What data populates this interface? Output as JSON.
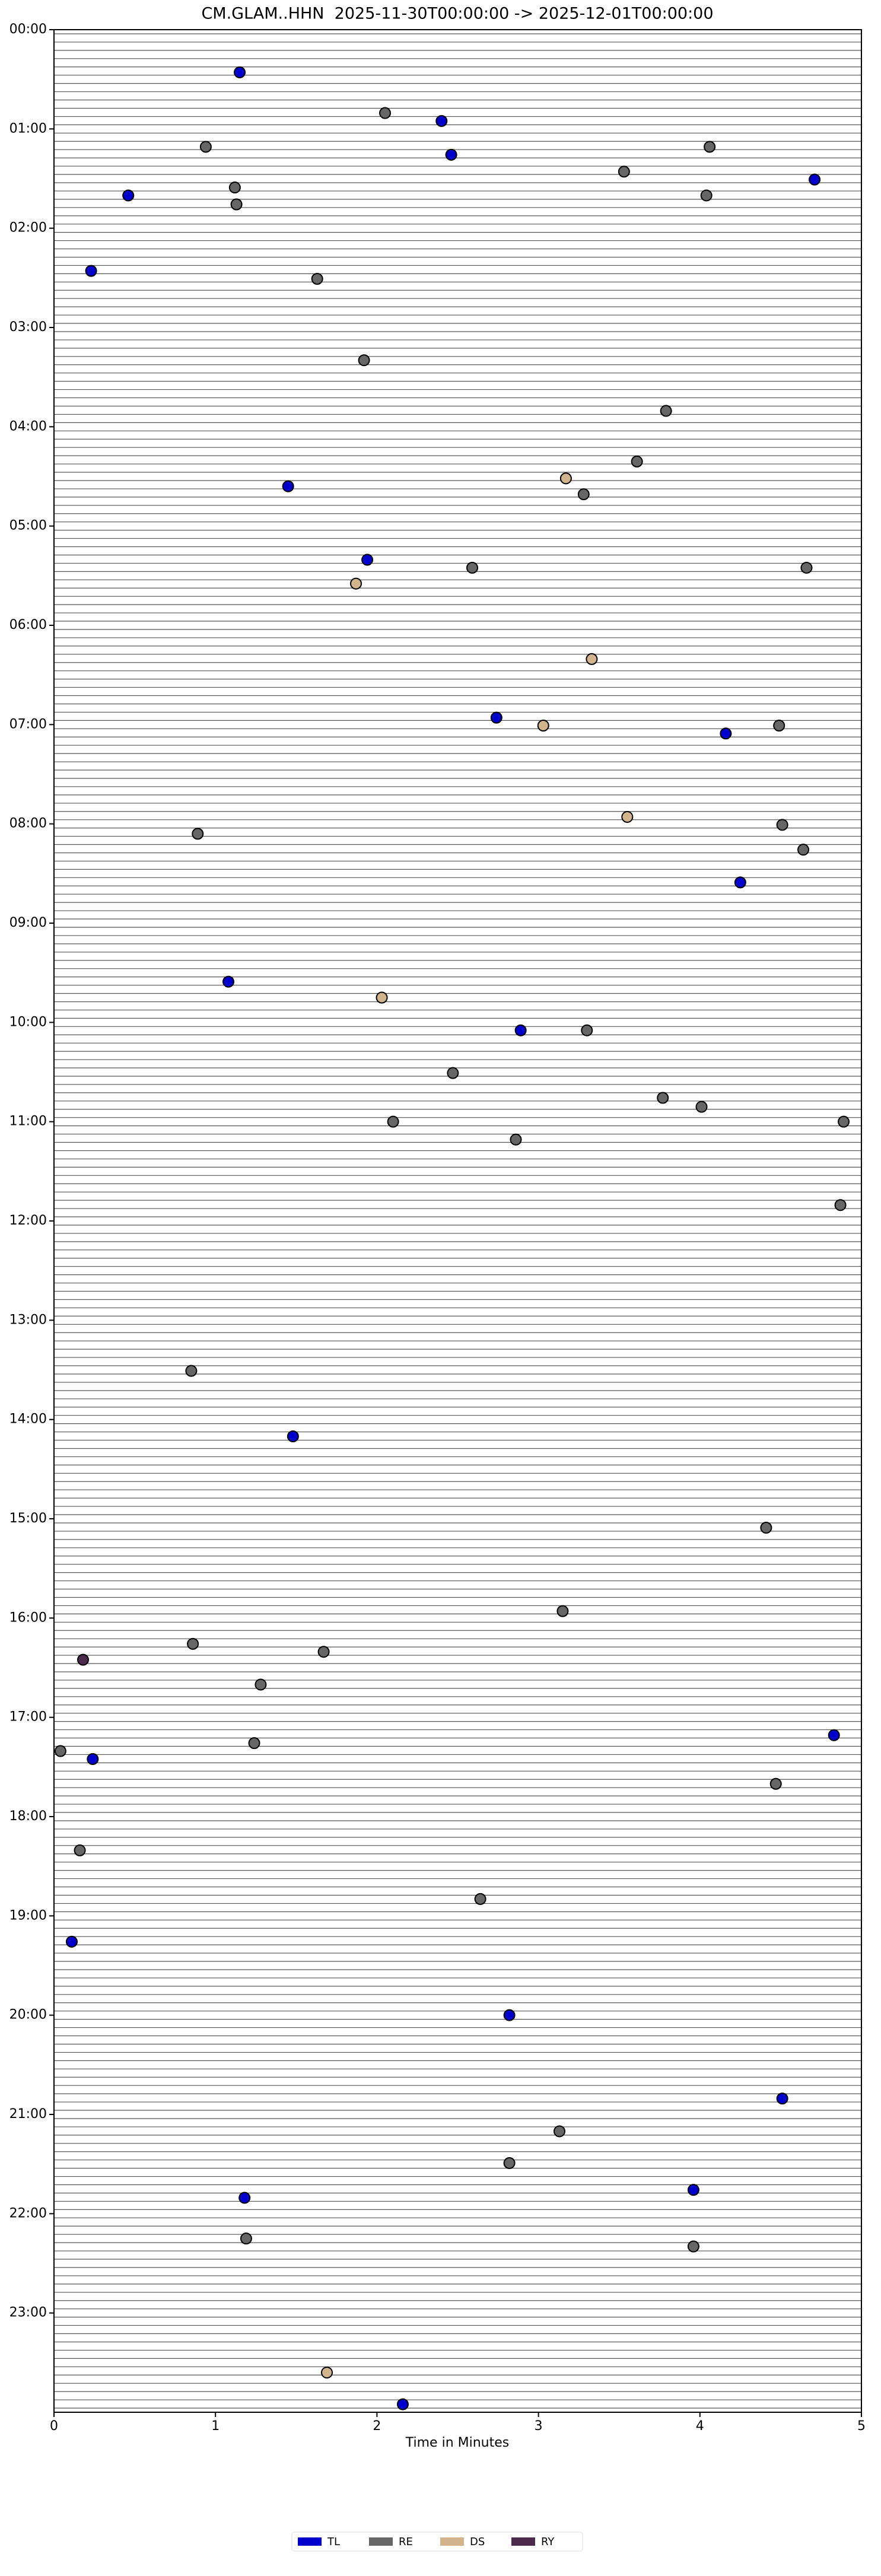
{
  "chart_data": {
    "type": "scatter",
    "title": "CM.GLAM..HHN  2025-11-30T00:00:00 -> 2025-12-01T00:00:00",
    "x_label": "Time in Minutes",
    "xlim": [
      0,
      5
    ],
    "xticks": [
      0,
      1,
      2,
      3,
      4,
      5
    ],
    "ylim": [
      24,
      0
    ],
    "yticks": [
      {
        "value": 0,
        "label": "00:00"
      },
      {
        "value": 1,
        "label": "01:00"
      },
      {
        "value": 2,
        "label": "02:00"
      },
      {
        "value": 3,
        "label": "03:00"
      },
      {
        "value": 4,
        "label": "04:00"
      },
      {
        "value": 5,
        "label": "05:00"
      },
      {
        "value": 6,
        "label": "06:00"
      },
      {
        "value": 7,
        "label": "07:00"
      },
      {
        "value": 8,
        "label": "08:00"
      },
      {
        "value": 9,
        "label": "09:00"
      },
      {
        "value": 10,
        "label": "10:00"
      },
      {
        "value": 11,
        "label": "11:00"
      },
      {
        "value": 12,
        "label": "12:00"
      },
      {
        "value": 13,
        "label": "13:00"
      },
      {
        "value": 14,
        "label": "14:00"
      },
      {
        "value": 15,
        "label": "15:00"
      },
      {
        "value": 16,
        "label": "16:00"
      },
      {
        "value": 17,
        "label": "17:00"
      },
      {
        "value": 18,
        "label": "18:00"
      },
      {
        "value": 19,
        "label": "19:00"
      },
      {
        "value": 20,
        "label": "20:00"
      },
      {
        "value": 21,
        "label": "21:00"
      },
      {
        "value": 22,
        "label": "22:00"
      },
      {
        "value": 23,
        "label": "23:00"
      }
    ],
    "series": [
      {
        "name": "TL",
        "color": "#0000cc",
        "x": [
          1.15,
          2.4,
          2.46,
          0.46,
          4.71,
          0.23,
          1.45,
          1.94,
          2.74,
          4.16,
          4.25,
          1.08,
          2.89,
          1.48,
          4.83,
          0.24,
          0.11,
          2.82,
          4.51,
          3.96,
          1.18,
          2.16
        ],
        "values": [
          0.43,
          0.92,
          1.26,
          1.67,
          1.51,
          2.43,
          4.6,
          5.34,
          6.93,
          7.09,
          8.59,
          9.59,
          10.08,
          14.17,
          17.18,
          17.42,
          19.26,
          20.0,
          20.84,
          21.76,
          21.84,
          23.92
        ]
      },
      {
        "name": "RE",
        "color": "#666666",
        "x": [
          2.05,
          0.94,
          4.06,
          3.53,
          1.12,
          4.04,
          1.13,
          1.63,
          1.92,
          3.79,
          3.61,
          3.28,
          2.59,
          4.66,
          4.49,
          4.51,
          0.89,
          4.64,
          3.3,
          2.47,
          3.77,
          4.01,
          2.1,
          4.89,
          2.86,
          4.87,
          0.85,
          4.41,
          3.15,
          0.86,
          1.67,
          1.28,
          0.04,
          1.24,
          4.47,
          0.16,
          2.64,
          3.13,
          2.82,
          1.19,
          3.96
        ],
        "values": [
          0.84,
          1.18,
          1.18,
          1.43,
          1.59,
          1.67,
          1.76,
          2.51,
          3.33,
          3.84,
          4.35,
          4.68,
          5.42,
          5.42,
          7.01,
          8.01,
          8.1,
          8.26,
          10.08,
          10.51,
          10.76,
          10.85,
          11.0,
          11.0,
          11.18,
          11.84,
          13.51,
          15.09,
          15.93,
          16.26,
          16.34,
          16.67,
          17.34,
          17.26,
          17.67,
          18.34,
          18.83,
          21.17,
          21.49,
          22.25,
          22.33
        ]
      },
      {
        "name": "DS",
        "color": "#d2b48c",
        "x": [
          3.17,
          1.87,
          3.33,
          3.03,
          3.55,
          2.03,
          1.69
        ],
        "values": [
          4.52,
          5.58,
          6.34,
          7.01,
          7.93,
          9.75,
          23.6
        ]
      },
      {
        "name": "RY",
        "color": "#4b2a4b",
        "x": [
          0.18
        ],
        "values": [
          16.42
        ]
      }
    ]
  }
}
